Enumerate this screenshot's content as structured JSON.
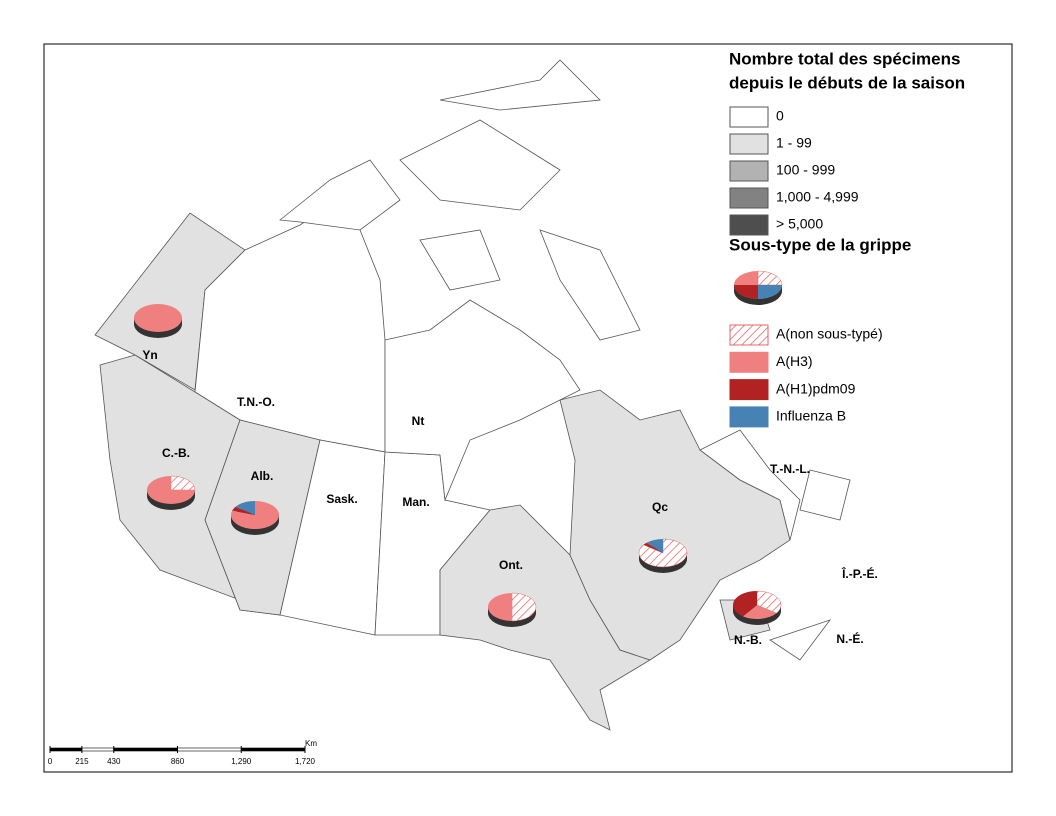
{
  "legend": {
    "title_line1": "Nombre total des spécimens",
    "title_line2": "depuis le débuts de la saison",
    "classes": [
      {
        "label": "0",
        "color": "#ffffff"
      },
      {
        "label": "1 - 99",
        "color": "#e1e1e1"
      },
      {
        "label": "100 - 999",
        "color": "#b2b2b2"
      },
      {
        "label": "1,000 - 4,999",
        "color": "#828282"
      },
      {
        "label": "> 5,000",
        "color": "#4e4e4e"
      }
    ],
    "subtype_title": "Sous-type de la grippe",
    "subtypes": [
      {
        "label": "A(non sous-typé)",
        "color": "#e06666"
      },
      {
        "label": "A(H3)",
        "color": "#f08080"
      },
      {
        "label": "A(H1)pdm09",
        "color": "#b22222"
      },
      {
        "label": "Influenza B",
        "color": "#4682b4"
      }
    ]
  },
  "regions": [
    {
      "label": "Yn",
      "pie": [
        0,
        100,
        0,
        0
      ]
    },
    {
      "label": "T.N.-O."
    },
    {
      "label": "Nt"
    },
    {
      "label": "C.-B.",
      "pie": [
        25,
        75,
        0,
        0
      ]
    },
    {
      "label": "Alb.",
      "pie": [
        0,
        80,
        5,
        15
      ]
    },
    {
      "label": "Sask."
    },
    {
      "label": "Man."
    },
    {
      "label": "Ont.",
      "pie": [
        50,
        50,
        0,
        0
      ]
    },
    {
      "label": "Qc",
      "pie": [
        85,
        0,
        3,
        12
      ]
    },
    {
      "label": "T.-N.-L."
    },
    {
      "label": "Î.-P.-É."
    },
    {
      "label": "N.-B.",
      "pie": [
        35,
        25,
        40,
        0
      ]
    },
    {
      "label": "N.-É."
    }
  ],
  "scale": {
    "unit": "Km",
    "ticks": [
      0,
      215,
      430,
      860,
      {
        "value": 1290,
        "label": "1,290"
      },
      {
        "value": 1720,
        "label": "1,720"
      }
    ]
  }
}
